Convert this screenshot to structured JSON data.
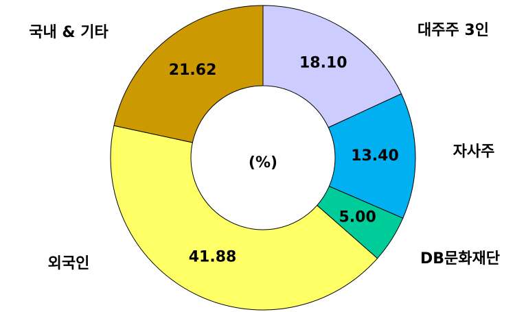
{
  "chart_data": {
    "type": "donut",
    "center_label": "(%)",
    "categories": [
      "대주주 3인",
      "자사주",
      "DB문화재단",
      "외국인",
      "국내 & 기타"
    ],
    "values": [
      18.1,
      13.4,
      5.0,
      41.88,
      21.62
    ],
    "value_labels": [
      "18.10",
      "13.40",
      "5.00",
      "41.88",
      "21.62"
    ],
    "colors": [
      "#ccccff",
      "#00b0f0",
      "#00cc99",
      "#ffff66",
      "#cc9900"
    ]
  }
}
